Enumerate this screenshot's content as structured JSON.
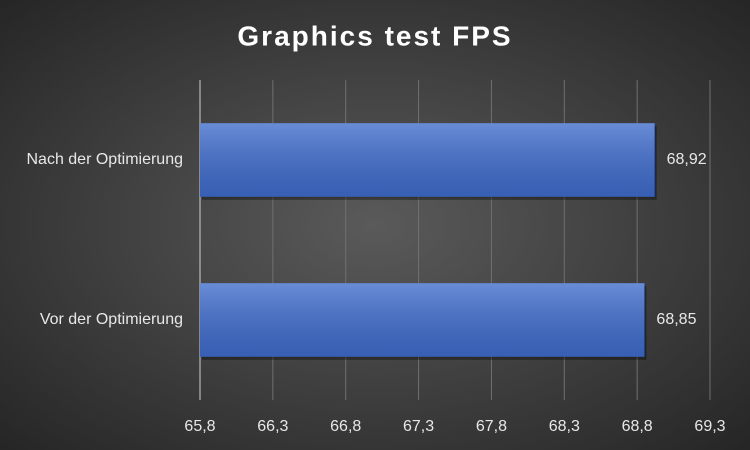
{
  "chart_data": {
    "type": "hbar",
    "title": "Graphics test FPS",
    "categories": [
      "Nach der Optimierung",
      "Vor der Optimierung"
    ],
    "values": [
      68.92,
      68.85
    ],
    "value_labels": [
      "68,92",
      "68,85"
    ],
    "color": "#3f6ccc",
    "xlim": [
      65.8,
      69.3
    ],
    "xticks": [
      {
        "value": 65.8,
        "label": "65,8"
      },
      {
        "value": 66.3,
        "label": "66,3"
      },
      {
        "value": 66.8,
        "label": "66,8"
      },
      {
        "value": 67.3,
        "label": "67,3"
      },
      {
        "value": 67.8,
        "label": "67,8"
      },
      {
        "value": 68.3,
        "label": "68,3"
      },
      {
        "value": 68.8,
        "label": "68,8"
      },
      {
        "value": 69.3,
        "label": "69,3"
      }
    ],
    "grid": true
  }
}
